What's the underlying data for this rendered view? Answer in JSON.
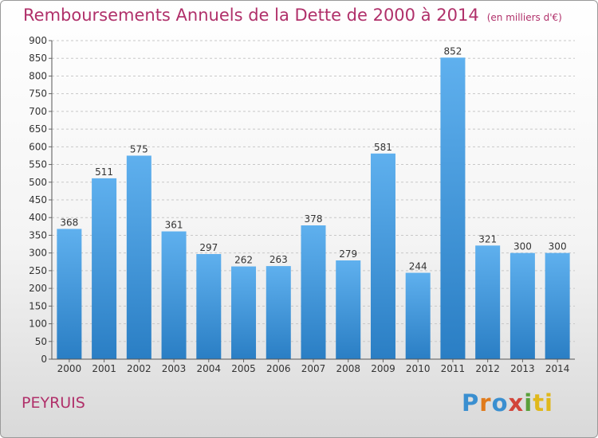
{
  "title": "Remboursements Annuels de la Dette de 2000 à 2014",
  "subtitle": "(en milliers d'€)",
  "commune": "PEYRUIS",
  "logo": {
    "p1": "P",
    "p2": "r",
    "p3": "o",
    "p4": "x",
    "p5": "i",
    "p6": "ti"
  },
  "colors": {
    "bar_top": "#5fb0ee",
    "bar_bottom": "#2a7ec4",
    "title": "#b0306a"
  },
  "chart_data": {
    "type": "bar",
    "categories": [
      "2000",
      "2001",
      "2002",
      "2003",
      "2004",
      "2005",
      "2006",
      "2007",
      "2008",
      "2009",
      "2010",
      "2011",
      "2012",
      "2013",
      "2014"
    ],
    "values": [
      368,
      511,
      575,
      361,
      297,
      262,
      263,
      378,
      279,
      581,
      244,
      852,
      321,
      300,
      300
    ],
    "ylim": [
      0,
      900
    ],
    "yticks": [
      0,
      50,
      100,
      150,
      200,
      250,
      300,
      350,
      400,
      450,
      500,
      550,
      600,
      650,
      700,
      750,
      800,
      850,
      900
    ],
    "grid": true,
    "data_labels": true
  }
}
